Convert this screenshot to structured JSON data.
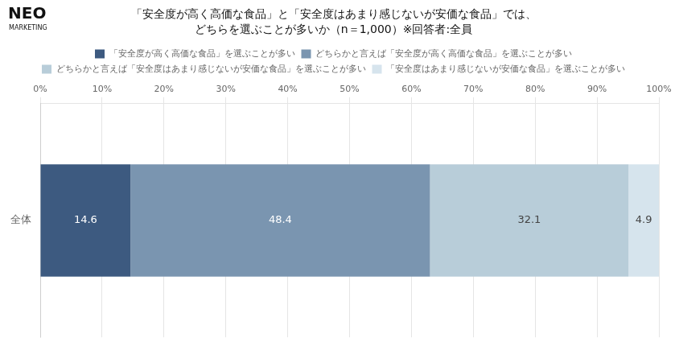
{
  "chart_data": {
    "type": "bar",
    "orientation": "horizontal",
    "stacked": true,
    "title": "「安全度が高く高価な食品」と「安全度はあまり感じないが安価な食品」では、",
    "subtitle": "どちらを選ぶことが多いか（n＝1,000）※回答者:全員",
    "annotations": [
      "NEO",
      "MARKETING"
    ],
    "categories": [
      "全体"
    ],
    "series": [
      {
        "name": "「安全度が高く高価な食品」を選ぶことが多い",
        "color": "#3d5a80",
        "values": [
          14.6
        ]
      },
      {
        "name": "どちらかと言えば「安全度が高く高価な食品」を選ぶことが多い",
        "color": "#7a95b0",
        "values": [
          48.4
        ]
      },
      {
        "name": "どちらかと言えば「安全度はあまり感じないが安価な食品」を選ぶことが多い",
        "color": "#b8cdd9",
        "values": [
          32.1
        ]
      },
      {
        "name": "「安全度はあまり感じないが安価な食品」を選ぶことが多い",
        "color": "#d6e4ed",
        "values": [
          4.9
        ]
      }
    ],
    "xlim": [
      0,
      100
    ],
    "xticks": [
      {
        "value": 0,
        "label": "0%"
      },
      {
        "value": 10,
        "label": "10%"
      },
      {
        "value": 20,
        "label": "20%"
      },
      {
        "value": 30,
        "label": "30%"
      },
      {
        "value": 40,
        "label": "40%"
      },
      {
        "value": 50,
        "label": "50%"
      },
      {
        "value": 60,
        "label": "60%"
      },
      {
        "value": 70,
        "label": "70%"
      },
      {
        "value": 80,
        "label": "80%"
      },
      {
        "value": 90,
        "label": "90%"
      },
      {
        "value": 100,
        "label": "100%"
      }
    ],
    "grid": true,
    "legend": "top",
    "data_labels": true
  }
}
